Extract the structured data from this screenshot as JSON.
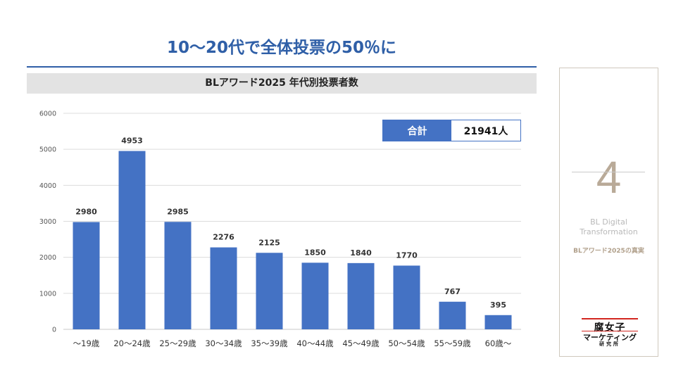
{
  "headline": "10～20代で全体投票の50％に",
  "summary": {
    "total_label": "合計",
    "total_value": "21941人"
  },
  "side_panel": {
    "number": "4",
    "subtitle_line1": "BL Digital",
    "subtitle_line2": "Transformation",
    "tag": "BLアワード2025の真実",
    "logo_line1": "腐女子",
    "logo_line2": "マーケティング",
    "logo_line3": "研究所"
  },
  "colors": {
    "bar": "#4472c4",
    "headline": "#2f5fa7"
  },
  "chart_data": {
    "type": "bar",
    "title": "BLアワード2025 年代別投票者数",
    "categories": [
      "～19歳",
      "20～24歳",
      "25～29歳",
      "30～34歳",
      "35～39歳",
      "40～44歳",
      "45～49歳",
      "50～54歳",
      "55～59歳",
      "60歳～"
    ],
    "values": [
      2980,
      4953,
      2985,
      2276,
      2125,
      1850,
      1840,
      1770,
      767,
      395
    ],
    "xlabel": "",
    "ylabel": "",
    "ylim": [
      0,
      6000
    ],
    "yticks": [
      0,
      1000,
      2000,
      3000,
      4000,
      5000,
      6000
    ],
    "grid": true,
    "data_labels": true
  }
}
